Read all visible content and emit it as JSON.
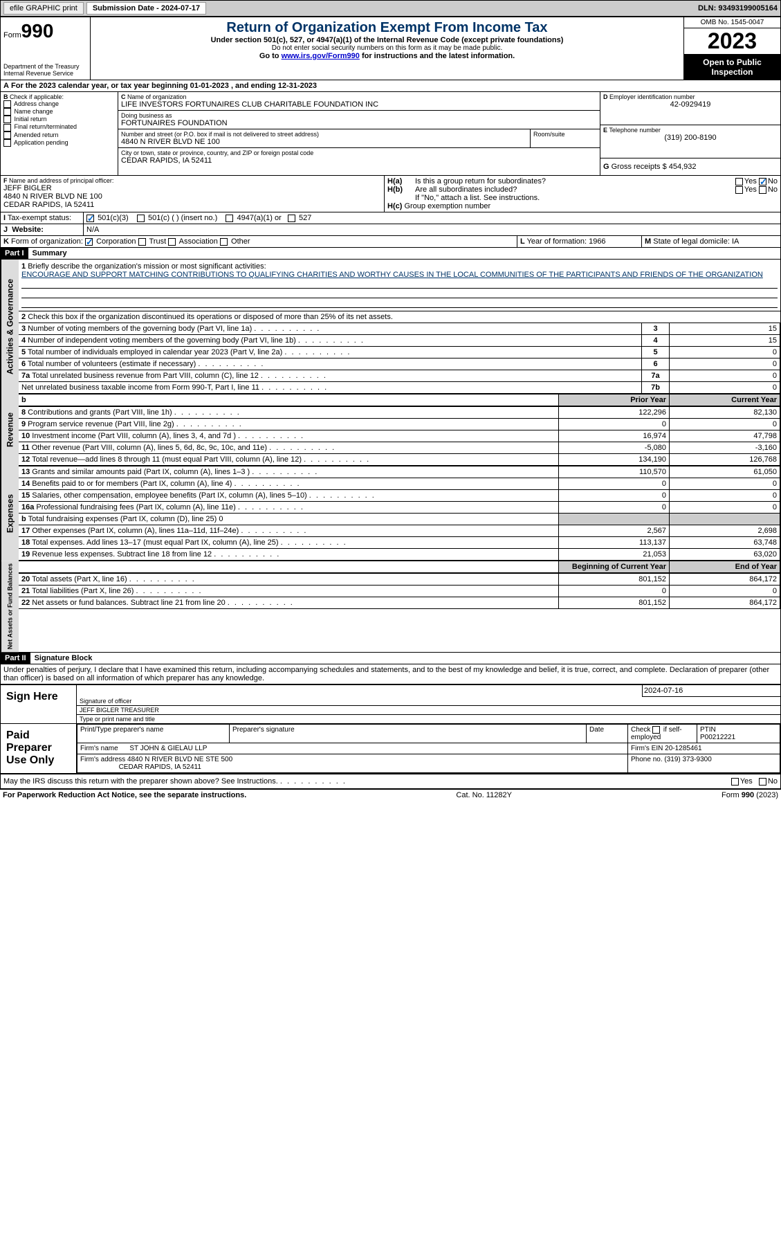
{
  "topbar": {
    "efile": "efile GRAPHIC print",
    "submission_label": "Submission Date - 2024-07-17",
    "dln": "DLN: 93493199005164"
  },
  "header": {
    "form_prefix": "Form",
    "form_num": "990",
    "dept": "Department of the Treasury\nInternal Revenue Service",
    "title": "Return of Organization Exempt From Income Tax",
    "sub1": "Under section 501(c), 527, or 4947(a)(1) of the Internal Revenue Code (except private foundations)",
    "sub2": "Do not enter social security numbers on this form as it may be made public.",
    "sub3_prefix": "Go to ",
    "sub3_link": "www.irs.gov/Form990",
    "sub3_suffix": " for instructions and the latest information.",
    "omb": "OMB No. 1545-0047",
    "year": "2023",
    "inspect": "Open to Public Inspection"
  },
  "lineA": "For the 2023 calendar year, or tax year beginning 01-01-2023   , and ending 12-31-2023",
  "boxB": {
    "label": "Check if applicable:",
    "opts": [
      "Address change",
      "Name change",
      "Initial return",
      "Final return/terminated",
      "Amended return",
      "Application pending"
    ]
  },
  "boxC": {
    "name_label": "Name of organization",
    "name": "LIFE INVESTORS FORTUNAIRES CLUB CHARITABLE FOUNDATION INC",
    "dba_label": "Doing business as",
    "dba": "FORTUNAIRES FOUNDATION",
    "street_label": "Number and street (or P.O. box if mail is not delivered to street address)",
    "street": "4840 N RIVER BLVD NE 100",
    "room_label": "Room/suite",
    "city_label": "City or town, state or province, country, and ZIP or foreign postal code",
    "city": "CEDAR RAPIDS, IA  52411"
  },
  "boxD": {
    "label": "Employer identification number",
    "val": "42-0929419"
  },
  "boxE": {
    "label": "Telephone number",
    "val": "(319) 200-8190"
  },
  "boxG": {
    "label": "Gross receipts $ ",
    "val": "454,932"
  },
  "boxF": {
    "label": "Name and address of principal officer:",
    "name": "JEFF BIGLER",
    "addr1": "4840 N RIVER BLVD NE 100",
    "addr2": "CEDAR RAPIDS, IA  52411"
  },
  "boxH": {
    "a": "Is this a group return for subordinates?",
    "b": "Are all subordinates included?",
    "note": "If \"No,\" attach a list. See instructions.",
    "c": "Group exemption number"
  },
  "boxI": {
    "label": "Tax-exempt status:",
    "o1": "501(c)(3)",
    "o2": "501(c) (  ) (insert no.)",
    "o3": "4947(a)(1) or",
    "o4": "527"
  },
  "boxJ": {
    "label": "Website:",
    "val": "N/A"
  },
  "boxK": {
    "label": "Form of organization:",
    "o1": "Corporation",
    "o2": "Trust",
    "o3": "Association",
    "o4": "Other"
  },
  "boxL": {
    "label": "Year of formation: ",
    "val": "1966"
  },
  "boxM": {
    "label": "State of legal domicile: ",
    "val": "IA"
  },
  "part1": {
    "hdr": "Part I",
    "title": "Summary"
  },
  "summary": {
    "l1_label": "Briefly describe the organization's mission or most significant activities:",
    "l1_text": "ENCOURAGE AND SUPPORT MATCHING CONTRIBUTIONS TO QUALIFYING CHARITIES AND WORTHY CAUSES IN THE LOCAL COMMUNITIES OF THE PARTICIPANTS AND FRIENDS OF THE ORGANIZATION",
    "l2": "Check this box        if the organization discontinued its operations or disposed of more than 25% of its net assets.",
    "lines_top": [
      {
        "n": "3",
        "t": "Number of voting members of the governing body (Part VI, line 1a)",
        "k": "3",
        "v": "15"
      },
      {
        "n": "4",
        "t": "Number of independent voting members of the governing body (Part VI, line 1b)",
        "k": "4",
        "v": "15"
      },
      {
        "n": "5",
        "t": "Total number of individuals employed in calendar year 2023 (Part V, line 2a)",
        "k": "5",
        "v": "0"
      },
      {
        "n": "6",
        "t": "Total number of volunteers (estimate if necessary)",
        "k": "6",
        "v": "0"
      },
      {
        "n": "7a",
        "t": "Total unrelated business revenue from Part VIII, column (C), line 12",
        "k": "7a",
        "v": "0"
      },
      {
        "n": "",
        "t": "Net unrelated business taxable income from Form 990-T, Part I, line 11",
        "k": "7b",
        "v": "0"
      }
    ],
    "col_prior": "Prior Year",
    "col_curr": "Current Year",
    "revenue": [
      {
        "n": "8",
        "t": "Contributions and grants (Part VIII, line 1h)",
        "p": "122,296",
        "c": "82,130"
      },
      {
        "n": "9",
        "t": "Program service revenue (Part VIII, line 2g)",
        "p": "0",
        "c": "0"
      },
      {
        "n": "10",
        "t": "Investment income (Part VIII, column (A), lines 3, 4, and 7d )",
        "p": "16,974",
        "c": "47,798"
      },
      {
        "n": "11",
        "t": "Other revenue (Part VIII, column (A), lines 5, 6d, 8c, 9c, 10c, and 11e)",
        "p": "-5,080",
        "c": "-3,160"
      },
      {
        "n": "12",
        "t": "Total revenue—add lines 8 through 11 (must equal Part VIII, column (A), line 12)",
        "p": "134,190",
        "c": "126,768"
      }
    ],
    "expenses": [
      {
        "n": "13",
        "t": "Grants and similar amounts paid (Part IX, column (A), lines 1–3 )",
        "p": "110,570",
        "c": "61,050"
      },
      {
        "n": "14",
        "t": "Benefits paid to or for members (Part IX, column (A), line 4)",
        "p": "0",
        "c": "0"
      },
      {
        "n": "15",
        "t": "Salaries, other compensation, employee benefits (Part IX, column (A), lines 5–10)",
        "p": "0",
        "c": "0"
      },
      {
        "n": "16a",
        "t": "Professional fundraising fees (Part IX, column (A), line 11e)",
        "p": "0",
        "c": "0"
      },
      {
        "n": "b",
        "t": "Total fundraising expenses (Part IX, column (D), line 25) 0",
        "p": "",
        "c": "",
        "grey": true
      },
      {
        "n": "17",
        "t": "Other expenses (Part IX, column (A), lines 11a–11d, 11f–24e)",
        "p": "2,567",
        "c": "2,698"
      },
      {
        "n": "18",
        "t": "Total expenses. Add lines 13–17 (must equal Part IX, column (A), line 25)",
        "p": "113,137",
        "c": "63,748"
      },
      {
        "n": "19",
        "t": "Revenue less expenses. Subtract line 18 from line 12",
        "p": "21,053",
        "c": "63,020"
      }
    ],
    "col_begin": "Beginning of Current Year",
    "col_end": "End of Year",
    "net": [
      {
        "n": "20",
        "t": "Total assets (Part X, line 16)",
        "p": "801,152",
        "c": "864,172"
      },
      {
        "n": "21",
        "t": "Total liabilities (Part X, line 26)",
        "p": "0",
        "c": "0"
      },
      {
        "n": "22",
        "t": "Net assets or fund balances. Subtract line 21 from line 20",
        "p": "801,152",
        "c": "864,172"
      }
    ]
  },
  "vlabels": {
    "gov": "Activities & Governance",
    "rev": "Revenue",
    "exp": "Expenses",
    "net": "Net Assets or Fund Balances"
  },
  "part2": {
    "hdr": "Part II",
    "title": "Signature Block"
  },
  "sig_decl": "Under penalties of perjury, I declare that I have examined this return, including accompanying schedules and statements, and to the best of my knowledge and belief, it is true, correct, and complete. Declaration of preparer (other than officer) is based on all information of which preparer has any knowledge.",
  "sign_here": {
    "label": "Sign Here",
    "date": "2024-07-16",
    "l1": "Signature of officer",
    "name": "JEFF BIGLER TREASURER",
    "l2": "Type or print name and title"
  },
  "paid_prep": {
    "label": "Paid Preparer Use Only",
    "h1": "Print/Type preparer's name",
    "h2": "Preparer's signature",
    "h3": "Date",
    "h4_pre": "Check",
    "h4_post": "if self-employed",
    "ptin_l": "PTIN",
    "ptin": "P00212221",
    "firm_l": "Firm's name",
    "firm": "ST JOHN & GIELAU LLP",
    "ein_l": "Firm's EIN  ",
    "ein": "20-1285461",
    "addr_l": "Firm's address",
    "addr": "4840 N RIVER BLVD NE STE 500",
    "city": "CEDAR RAPIDS, IA  52411",
    "phone_l": "Phone no. ",
    "phone": "(319) 373-9300"
  },
  "discuss": "May the IRS discuss this return with the preparer shown above? See Instructions.",
  "footer": {
    "l": "For Paperwork Reduction Act Notice, see the separate instructions.",
    "m": "Cat. No. 11282Y",
    "r": "Form 990 (2023)"
  },
  "yn": {
    "yes": "Yes",
    "no": "No"
  }
}
